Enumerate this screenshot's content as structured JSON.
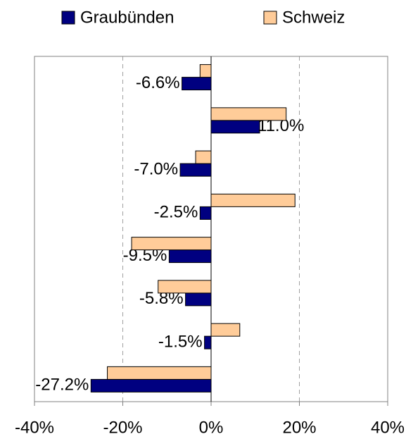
{
  "chart_data": {
    "type": "barh",
    "categories": [
      null,
      null,
      null,
      null,
      null,
      null,
      null,
      null
    ],
    "series": [
      {
        "name": "Graubünden",
        "color": "#000080",
        "values": [
          -6.6,
          11.0,
          -7.0,
          -2.5,
          -9.5,
          -5.8,
          -1.5,
          -27.2
        ],
        "value_labels": [
          "-6.6%",
          "11.0%",
          "-7.0%",
          "-2.5%",
          "-9.5%",
          "-5.8%",
          "-1.5%",
          "-27.2%"
        ]
      },
      {
        "name": "Schweiz",
        "color": "#ffcc99",
        "values": [
          -2.5,
          17,
          -3.5,
          19,
          -18,
          -12,
          6.5,
          -23.5
        ]
      }
    ],
    "xlim": [
      -40,
      40
    ],
    "xticks": [
      {
        "value": -40,
        "label": "-40%"
      },
      {
        "value": -20,
        "label": "-20%"
      },
      {
        "value": 0,
        "label": "0%"
      },
      {
        "value": 20,
        "label": "20%"
      },
      {
        "value": 40,
        "label": "40%"
      }
    ],
    "grid": true,
    "legend": "top"
  }
}
